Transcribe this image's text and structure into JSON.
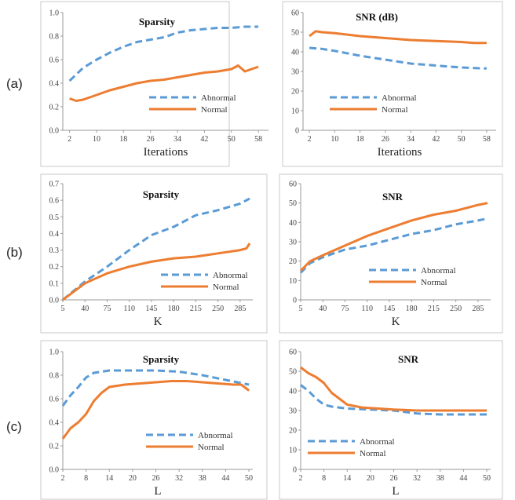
{
  "row_labels": [
    "(a)",
    "(b)",
    "(c)"
  ],
  "colors": {
    "abnormal": "#5B9BD5",
    "normal": "#ED7D31"
  },
  "chart_data": [
    {
      "type": "line",
      "title": "Sparsity",
      "xlabel": "Iterations",
      "ylabel": "",
      "x_ticks": [
        2,
        10,
        18,
        26,
        34,
        42,
        50,
        58
      ],
      "y_ticks": [
        "0.0",
        "0.2",
        "0.4",
        "0.6",
        "0.8",
        "1.0"
      ],
      "xlim": [
        0,
        61
      ],
      "ylim": [
        0,
        1.0
      ],
      "legend": "bottom-right",
      "series": [
        {
          "name": "Abnormal",
          "style": "dashed",
          "x": [
            2,
            6,
            10,
            14,
            18,
            22,
            26,
            30,
            34,
            38,
            42,
            46,
            50,
            54,
            58
          ],
          "y": [
            0.42,
            0.53,
            0.6,
            0.66,
            0.71,
            0.75,
            0.77,
            0.79,
            0.83,
            0.85,
            0.86,
            0.87,
            0.87,
            0.88,
            0.88
          ]
        },
        {
          "name": "Normal",
          "style": "solid",
          "x": [
            2,
            4,
            6,
            10,
            14,
            18,
            22,
            26,
            30,
            34,
            38,
            42,
            46,
            50,
            52,
            54,
            58
          ],
          "y": [
            0.27,
            0.25,
            0.26,
            0.3,
            0.34,
            0.37,
            0.4,
            0.42,
            0.43,
            0.45,
            0.47,
            0.49,
            0.5,
            0.52,
            0.55,
            0.5,
            0.54
          ]
        }
      ]
    },
    {
      "type": "line",
      "title": "SNR (dB)",
      "xlabel": "Iterations",
      "ylabel": "",
      "x_ticks": [
        2,
        10,
        18,
        26,
        34,
        42,
        50,
        58
      ],
      "y_ticks": [
        "0",
        "10",
        "20",
        "30",
        "40",
        "50",
        "60"
      ],
      "xlim": [
        0,
        61
      ],
      "ylim": [
        0,
        60
      ],
      "legend": "bottom-center",
      "series": [
        {
          "name": "Abnormal",
          "style": "dashed",
          "x": [
            2,
            6,
            10,
            18,
            26,
            34,
            42,
            50,
            58
          ],
          "y": [
            42,
            41.5,
            40.5,
            38,
            36,
            34,
            33,
            32,
            31.5
          ]
        },
        {
          "name": "Normal",
          "style": "solid",
          "x": [
            2,
            4,
            6,
            10,
            18,
            26,
            34,
            42,
            50,
            54,
            58
          ],
          "y": [
            48,
            50.5,
            50,
            49.5,
            48,
            47,
            46,
            45.5,
            45,
            44.5,
            44.5
          ]
        }
      ]
    },
    {
      "type": "line",
      "title": "Sparsity",
      "xlabel": "K",
      "ylabel": "",
      "x_ticks": [
        5,
        40,
        75,
        110,
        145,
        180,
        215,
        250,
        285
      ],
      "y_ticks": [
        "0.0",
        "0.1",
        "0.2",
        "0.3",
        "0.4",
        "0.5",
        "0.6",
        "0.7"
      ],
      "xlim": [
        5,
        305
      ],
      "ylim": [
        0,
        0.7
      ],
      "legend": "bottom-right",
      "series": [
        {
          "name": "Abnormal",
          "style": "dashed",
          "x": [
            5,
            40,
            75,
            110,
            145,
            180,
            215,
            250,
            285,
            300
          ],
          "y": [
            0,
            0.11,
            0.2,
            0.3,
            0.39,
            0.44,
            0.51,
            0.54,
            0.58,
            0.61
          ]
        },
        {
          "name": "Normal",
          "style": "solid",
          "x": [
            5,
            40,
            75,
            110,
            145,
            180,
            215,
            250,
            285,
            295,
            300
          ],
          "y": [
            0,
            0.1,
            0.16,
            0.2,
            0.23,
            0.25,
            0.26,
            0.28,
            0.3,
            0.31,
            0.34
          ]
        }
      ]
    },
    {
      "type": "line",
      "title": "SNR",
      "xlabel": "K",
      "ylabel": "",
      "x_ticks": [
        5,
        40,
        75,
        110,
        145,
        180,
        215,
        250,
        285
      ],
      "y_ticks": [
        "0",
        "10",
        "20",
        "30",
        "40",
        "50",
        "60"
      ],
      "xlim": [
        5,
        305
      ],
      "ylim": [
        0,
        60
      ],
      "legend": "bottom-right",
      "series": [
        {
          "name": "Abnormal",
          "style": "dashed",
          "x": [
            5,
            20,
            40,
            75,
            110,
            145,
            180,
            215,
            250,
            285,
            300
          ],
          "y": [
            14,
            19,
            22,
            26,
            28,
            31,
            34,
            36,
            39,
            41,
            42
          ]
        },
        {
          "name": "Normal",
          "style": "solid",
          "x": [
            5,
            20,
            40,
            75,
            110,
            145,
            180,
            215,
            250,
            285,
            300
          ],
          "y": [
            15,
            20,
            23,
            28,
            33,
            37,
            41,
            44,
            46,
            49,
            50
          ]
        }
      ]
    },
    {
      "type": "line",
      "title": "Sparsity",
      "xlabel": "L",
      "ylabel": "",
      "x_ticks": [
        2,
        8,
        14,
        20,
        26,
        32,
        38,
        44,
        50
      ],
      "y_ticks": [
        "0.0",
        "0.2",
        "0.4",
        "0.6",
        "0.8",
        "1.0"
      ],
      "xlim": [
        2,
        51
      ],
      "ylim": [
        0,
        1.0
      ],
      "legend": "bottom-right",
      "series": [
        {
          "name": "Abnormal",
          "style": "dashed",
          "x": [
            2,
            4,
            6,
            8,
            10,
            14,
            20,
            26,
            32,
            38,
            44,
            50
          ],
          "y": [
            0.54,
            0.63,
            0.7,
            0.78,
            0.82,
            0.84,
            0.84,
            0.84,
            0.83,
            0.8,
            0.76,
            0.72
          ]
        },
        {
          "name": "Normal",
          "style": "solid",
          "x": [
            2,
            4,
            6,
            8,
            10,
            12,
            14,
            18,
            22,
            26,
            30,
            34,
            38,
            42,
            46,
            48,
            50
          ],
          "y": [
            0.26,
            0.35,
            0.4,
            0.47,
            0.58,
            0.65,
            0.7,
            0.72,
            0.73,
            0.74,
            0.75,
            0.75,
            0.74,
            0.73,
            0.72,
            0.72,
            0.67
          ]
        }
      ]
    },
    {
      "type": "line",
      "title": "SNR",
      "xlabel": "L",
      "ylabel": "",
      "x_ticks": [
        2,
        8,
        14,
        20,
        26,
        32,
        38,
        44,
        50
      ],
      "y_ticks": [
        "0",
        "10",
        "20",
        "30",
        "40",
        "50",
        "60"
      ],
      "xlim": [
        2,
        51
      ],
      "ylim": [
        0,
        60
      ],
      "legend": "bottom-center",
      "series": [
        {
          "name": "Abnormal",
          "style": "dashed",
          "x": [
            2,
            4,
            6,
            8,
            10,
            14,
            20,
            26,
            32,
            38,
            44,
            50
          ],
          "y": [
            43,
            40,
            36,
            33,
            32,
            31,
            30.5,
            30,
            28.5,
            28,
            28,
            28
          ]
        },
        {
          "name": "Normal",
          "style": "solid",
          "x": [
            2,
            4,
            6,
            8,
            10,
            12,
            14,
            18,
            22,
            26,
            32,
            38,
            44,
            50
          ],
          "y": [
            52,
            49,
            47,
            44,
            39,
            36,
            33,
            31.5,
            31,
            30.5,
            30,
            30,
            30,
            30
          ]
        }
      ]
    }
  ]
}
